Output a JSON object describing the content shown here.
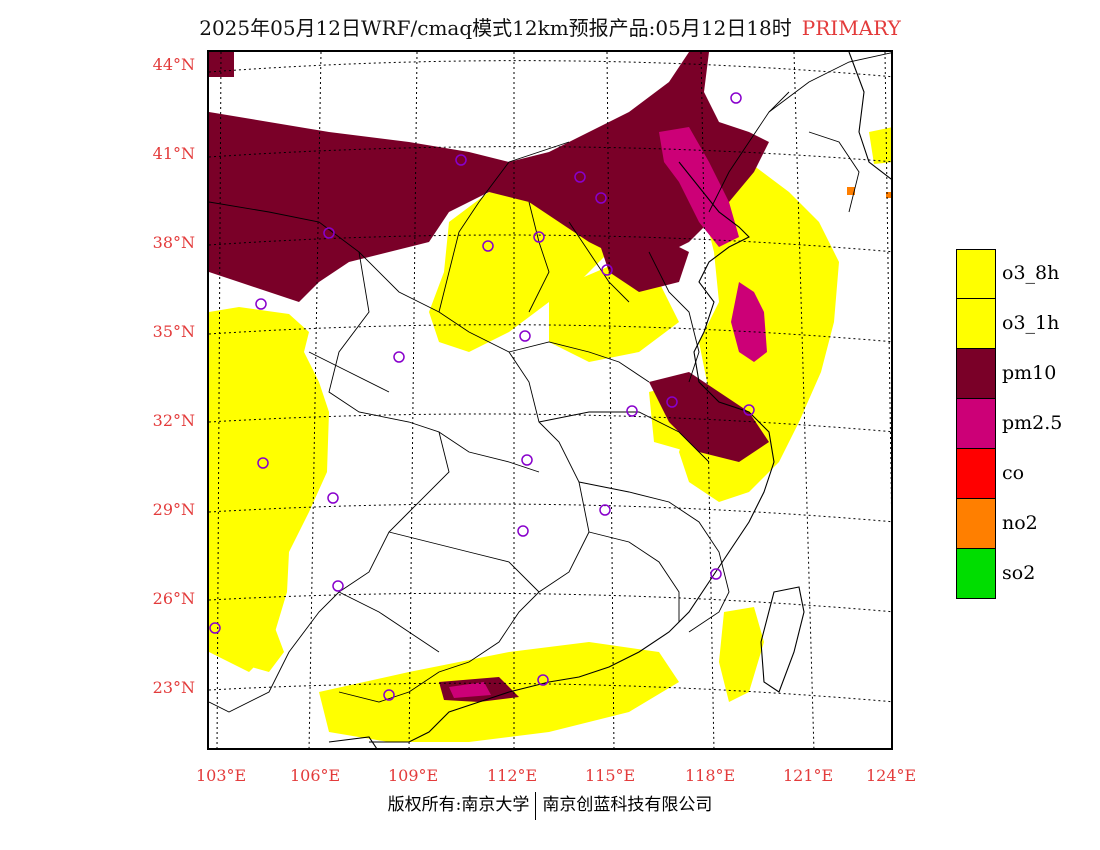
{
  "header": {
    "title": "2025年05月12日WRF/cmaq模式12km预报产品:05月12日18时",
    "tag": "PRIMARY"
  },
  "map": {
    "lat_labels": [
      "44°N",
      "41°N",
      "38°N",
      "35°N",
      "32°N",
      "29°N",
      "26°N",
      "23°N"
    ],
    "lon_labels": [
      "103°E",
      "106°E",
      "109°E",
      "112°E",
      "115°E",
      "118°E",
      "121°E",
      "124°E"
    ]
  },
  "legend": [
    {
      "label": "o3_8h",
      "color": "#ffff00"
    },
    {
      "label": "o3_1h",
      "color": "#ffff00"
    },
    {
      "label": "pm10",
      "color": "#7a0028"
    },
    {
      "label": "pm2.5",
      "color": "#cc0077"
    },
    {
      "label": "co",
      "color": "#ff0000"
    },
    {
      "label": "no2",
      "color": "#ff7f00"
    },
    {
      "label": "so2",
      "color": "#00dd00"
    }
  ],
  "footer": {
    "left": "版权所有:南京大学",
    "right": "南京创蓝科技有限公司"
  }
}
